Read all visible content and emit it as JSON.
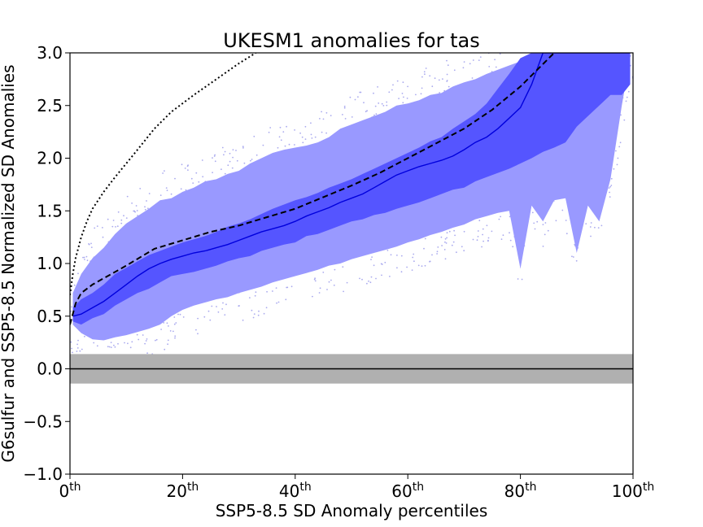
{
  "chart_data": {
    "type": "area",
    "title": "UKESM1 anomalies for tas",
    "xlabel": "SSP5-8.5 SD Anomaly percentiles",
    "ylabel": "G6sulfur and SSP5-8.5 Normalized SD Anomalies",
    "xlim": [
      0,
      100
    ],
    "ylim": [
      -1.0,
      3.0
    ],
    "x_ticks": [
      0,
      20,
      40,
      60,
      80,
      100
    ],
    "x_tick_labels": [
      {
        "num": "0",
        "sup": "th"
      },
      {
        "num": "20",
        "sup": "th"
      },
      {
        "num": "40",
        "sup": "th"
      },
      {
        "num": "60",
        "sup": "th"
      },
      {
        "num": "80",
        "sup": "th"
      },
      {
        "num": "100",
        "sup": "th"
      }
    ],
    "y_ticks": [
      -1.0,
      -0.5,
      0.0,
      0.5,
      1.0,
      1.5,
      2.0,
      2.5,
      3.0
    ],
    "y_tick_labels": [
      "−1.0",
      "−0.5",
      "0.0",
      "0.5",
      "1.0",
      "1.5",
      "2.0",
      "2.5",
      "3.0"
    ],
    "grid": false,
    "colors": {
      "outer_band": "#9999ff",
      "inner_band": "#5555ff",
      "median_line": "#0000dd",
      "scatter": "#aaaaee",
      "zero_band": "#b0b0b0"
    },
    "zero_band": [
      -0.14,
      0.14
    ],
    "x": [
      0.5,
      2,
      4,
      6,
      8,
      10,
      12,
      14,
      16,
      18,
      20,
      22,
      24,
      26,
      28,
      30,
      32,
      34,
      36,
      38,
      40,
      42,
      44,
      46,
      48,
      50,
      52,
      54,
      56,
      58,
      60,
      62,
      64,
      66,
      68,
      70,
      72,
      74,
      76,
      78,
      80,
      82,
      84,
      86,
      88,
      90,
      92,
      94,
      96,
      98,
      99.5
    ],
    "series": [
      {
        "kind": "outer_band",
        "lower": [
          0.42,
          0.34,
          0.28,
          0.27,
          0.3,
          0.32,
          0.35,
          0.38,
          0.42,
          0.5,
          0.56,
          0.6,
          0.63,
          0.66,
          0.68,
          0.72,
          0.75,
          0.78,
          0.82,
          0.85,
          0.88,
          0.91,
          0.94,
          0.98,
          1.0,
          1.04,
          1.07,
          1.1,
          1.13,
          1.16,
          1.2,
          1.23,
          1.27,
          1.3,
          1.34,
          1.37,
          1.42,
          1.45,
          1.48,
          1.5,
          0.95,
          1.55,
          1.4,
          1.6,
          1.62,
          1.1,
          1.55,
          1.4,
          1.8,
          2.5,
          2.95
        ],
        "upper": [
          0.72,
          0.9,
          1.05,
          1.15,
          1.28,
          1.38,
          1.45,
          1.52,
          1.6,
          1.62,
          1.68,
          1.72,
          1.78,
          1.8,
          1.85,
          1.88,
          1.95,
          2.0,
          2.05,
          2.08,
          2.1,
          2.12,
          2.15,
          2.2,
          2.28,
          2.32,
          2.36,
          2.4,
          2.44,
          2.5,
          2.52,
          2.55,
          2.6,
          2.62,
          2.68,
          2.72,
          2.75,
          2.8,
          2.84,
          2.88,
          2.92,
          2.96,
          3.0,
          3.0,
          3.0,
          3.0,
          3.0,
          3.0,
          3.0,
          3.0,
          3.0
        ]
      },
      {
        "kind": "inner_band",
        "lower": [
          0.45,
          0.42,
          0.48,
          0.52,
          0.6,
          0.66,
          0.72,
          0.76,
          0.82,
          0.88,
          0.9,
          0.92,
          0.95,
          0.98,
          1.02,
          1.05,
          1.07,
          1.12,
          1.15,
          1.18,
          1.2,
          1.26,
          1.28,
          1.32,
          1.36,
          1.4,
          1.42,
          1.46,
          1.48,
          1.52,
          1.55,
          1.58,
          1.62,
          1.66,
          1.7,
          1.72,
          1.78,
          1.82,
          1.86,
          1.9,
          1.95,
          2.0,
          2.06,
          2.1,
          2.15,
          2.3,
          2.4,
          2.5,
          2.6,
          2.6,
          2.7
        ],
        "upper": [
          0.58,
          0.66,
          0.72,
          0.8,
          0.9,
          0.96,
          1.02,
          1.08,
          1.12,
          1.16,
          1.2,
          1.23,
          1.26,
          1.3,
          1.35,
          1.38,
          1.42,
          1.47,
          1.52,
          1.56,
          1.6,
          1.63,
          1.67,
          1.72,
          1.76,
          1.8,
          1.85,
          1.9,
          1.95,
          2.0,
          2.05,
          2.1,
          2.16,
          2.2,
          2.28,
          2.35,
          2.42,
          2.52,
          2.66,
          2.8,
          2.95,
          3.0,
          3.0,
          3.0,
          3.0,
          3.0,
          3.0,
          3.0,
          3.0,
          3.0,
          3.0
        ]
      },
      {
        "kind": "median",
        "values": [
          0.5,
          0.52,
          0.58,
          0.64,
          0.72,
          0.8,
          0.88,
          0.95,
          1.0,
          1.04,
          1.07,
          1.1,
          1.12,
          1.15,
          1.18,
          1.22,
          1.26,
          1.3,
          1.33,
          1.36,
          1.4,
          1.45,
          1.49,
          1.53,
          1.58,
          1.62,
          1.66,
          1.72,
          1.78,
          1.84,
          1.88,
          1.92,
          1.95,
          1.98,
          2.02,
          2.08,
          2.15,
          2.2,
          2.28,
          2.38,
          2.48,
          2.7,
          3.0,
          3.0,
          3.0,
          3.0,
          3.0,
          3.0,
          3.0,
          3.0,
          3.0
        ]
      }
    ],
    "reference_dashed": {
      "x": [
        0,
        1,
        2,
        4,
        6,
        8,
        10,
        15,
        20,
        25,
        30,
        35,
        40,
        45,
        50,
        55,
        60,
        65,
        70,
        75,
        80,
        83,
        86
      ],
      "values": [
        0.42,
        0.62,
        0.72,
        0.8,
        0.86,
        0.92,
        0.98,
        1.14,
        1.22,
        1.3,
        1.36,
        1.44,
        1.52,
        1.63,
        1.74,
        1.86,
        2.0,
        2.14,
        2.28,
        2.46,
        2.68,
        2.84,
        3.0
      ]
    },
    "reference_dotted": {
      "x": [
        0,
        0.5,
        1,
        2,
        3,
        4,
        6,
        8,
        10,
        12,
        15,
        18,
        22,
        26,
        30,
        33
      ],
      "values": [
        0.7,
        0.9,
        1.05,
        1.25,
        1.4,
        1.52,
        1.68,
        1.82,
        1.95,
        2.08,
        2.28,
        2.44,
        2.6,
        2.75,
        2.9,
        3.0
      ]
    }
  }
}
